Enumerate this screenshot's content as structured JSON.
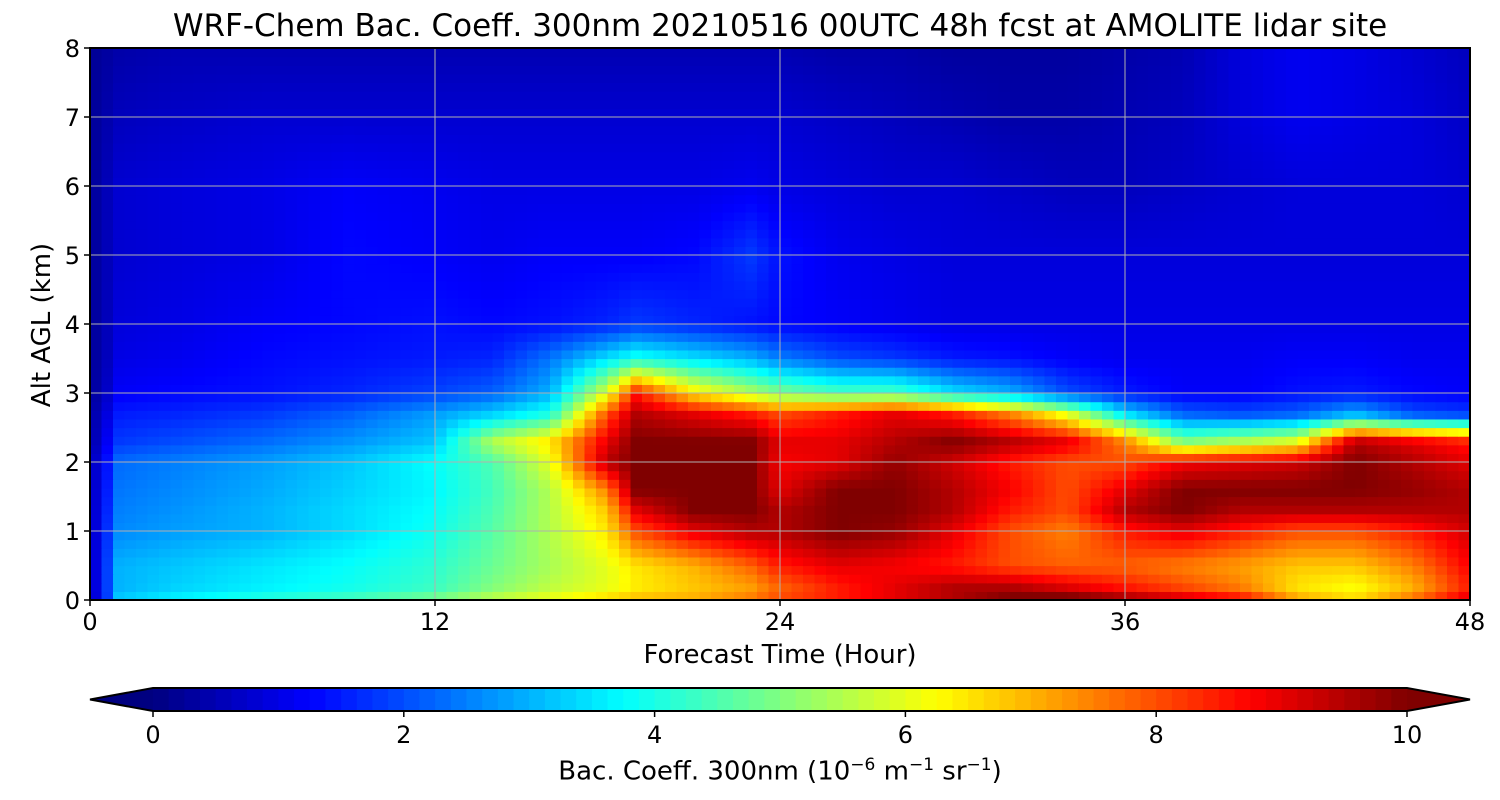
{
  "chart_data": {
    "type": "heatmap",
    "title": "WRF-Chem Bac. Coeff. 300nm  20210516 00UTC 48h fcst at AMOLITE lidar site",
    "xlabel": "Forecast Time (Hour)",
    "ylabel": "Alt AGL (km)",
    "xlim": [
      0,
      48
    ],
    "ylim": [
      0,
      8
    ],
    "x_ticks": [
      "0",
      "12",
      "24",
      "36",
      "48"
    ],
    "y_ticks": [
      "0",
      "1",
      "2",
      "3",
      "4",
      "5",
      "6",
      "7",
      "8"
    ],
    "grid": true,
    "colorbar": {
      "label_prefix": "Bac. Coeff. 300nm  (10",
      "label_exp1": "−6",
      "label_mid": " m",
      "label_exp2": "−1",
      "label_mid2": " sr",
      "label_exp3": "−1",
      "label_suffix": ")",
      "colormap": "jet",
      "range": [
        0,
        10
      ],
      "extend": "both",
      "ticks": [
        "0",
        "2",
        "4",
        "6",
        "8",
        "10"
      ]
    },
    "x_hours": [
      0,
      0.5,
      1,
      3,
      6,
      9,
      12,
      14,
      16,
      18,
      19,
      21,
      23,
      24,
      26,
      28,
      30,
      32,
      34,
      36,
      38,
      40,
      42,
      44,
      46,
      48
    ],
    "y_km": [
      0,
      0.05,
      0.2,
      0.5,
      1.0,
      1.3,
      1.6,
      2.0,
      2.3,
      2.7,
      3.0,
      3.5,
      4.0,
      5.0,
      6.0,
      7.0,
      8.0
    ],
    "z_values": [
      [
        0.5,
        1.0,
        1.5,
        1.6,
        1.8,
        2.0,
        3.0,
        4.5,
        5.5,
        6.5,
        6.8,
        7.0,
        7.5,
        8.0,
        8.5,
        9.0,
        9.2,
        9.5,
        9.5,
        9.5,
        9.5,
        9.5,
        9.0,
        8.5,
        8.8,
        9.5
      ],
      [
        0.5,
        1.5,
        3.2,
        3.6,
        4.0,
        4.3,
        4.8,
        5.5,
        6.0,
        6.5,
        6.8,
        7.0,
        7.5,
        8.0,
        8.5,
        9.0,
        9.5,
        10,
        10,
        9.5,
        9.0,
        8.5,
        7.0,
        6.5,
        7.5,
        9.0
      ],
      [
        0.5,
        1.6,
        3.0,
        3.3,
        3.6,
        3.9,
        4.3,
        5.0,
        5.6,
        6.0,
        6.4,
        6.8,
        7.2,
        7.8,
        8.5,
        9.0,
        9.5,
        9.5,
        9.0,
        8.5,
        8.0,
        7.5,
        6.5,
        6.2,
        7.0,
        8.5
      ],
      [
        0.5,
        1.6,
        3.0,
        3.2,
        3.5,
        3.8,
        4.2,
        4.8,
        5.4,
        6.0,
        6.5,
        7.0,
        7.8,
        8.5,
        9.0,
        8.8,
        8.5,
        8.0,
        7.8,
        7.8,
        7.5,
        7.2,
        6.8,
        6.8,
        7.5,
        8.8
      ],
      [
        0.5,
        1.5,
        2.6,
        2.8,
        3.0,
        3.4,
        3.9,
        4.6,
        5.5,
        6.5,
        8.0,
        9.0,
        9.5,
        9.5,
        10,
        9.8,
        9.0,
        8.0,
        7.5,
        8.5,
        9.0,
        8.5,
        8.0,
        8.0,
        8.5,
        9.2
      ],
      [
        0.5,
        1.4,
        2.5,
        2.7,
        3.0,
        3.4,
        3.8,
        4.5,
        5.5,
        6.8,
        9.0,
        10,
        10,
        9.5,
        10,
        10,
        9.5,
        8.5,
        8.0,
        9.5,
        10,
        9.5,
        9.5,
        9.5,
        9.5,
        9.5
      ],
      [
        0.5,
        1.3,
        2.4,
        2.6,
        2.9,
        3.3,
        3.7,
        4.4,
        5.5,
        7.5,
        10,
        10,
        10,
        9.0,
        10,
        10,
        9.5,
        8.8,
        8.0,
        9.0,
        10,
        10,
        10,
        10,
        9.8,
        9.5
      ],
      [
        0.5,
        1.2,
        2.3,
        2.5,
        2.8,
        3.2,
        3.8,
        4.5,
        6.0,
        9.5,
        10,
        10,
        10,
        8.8,
        9.0,
        9.8,
        9.2,
        8.5,
        8.0,
        8.0,
        8.8,
        9.0,
        9.2,
        10,
        9.5,
        9.0
      ],
      [
        0.3,
        1.0,
        1.8,
        2.0,
        2.3,
        2.7,
        3.2,
        5.5,
        6.5,
        9.0,
        10,
        10,
        10,
        9.0,
        9.0,
        9.5,
        10,
        9.5,
        9.0,
        7.5,
        5.0,
        5.5,
        6.0,
        9.5,
        9.0,
        8.5
      ],
      [
        0.3,
        0.8,
        1.5,
        1.6,
        1.8,
        2.2,
        2.8,
        3.3,
        4.0,
        8.0,
        9.5,
        9.0,
        8.5,
        8.0,
        8.5,
        9.0,
        8.5,
        7.5,
        6.0,
        3.5,
        2.2,
        2.0,
        2.2,
        3.0,
        2.0,
        1.8
      ],
      [
        0.2,
        0.6,
        1.2,
        1.3,
        1.4,
        1.6,
        1.9,
        2.2,
        3.0,
        6.0,
        8.5,
        6.5,
        5.5,
        5.0,
        4.5,
        4.5,
        3.5,
        3.0,
        2.0,
        1.5,
        1.2,
        1.2,
        1.4,
        1.5,
        1.3,
        1.2
      ],
      [
        0.2,
        0.5,
        1.0,
        1.1,
        1.3,
        1.4,
        1.5,
        1.6,
        2.4,
        3.5,
        4.0,
        3.5,
        3.0,
        2.5,
        2.0,
        1.8,
        1.5,
        1.4,
        1.2,
        1.1,
        1.1,
        1.1,
        1.2,
        1.2,
        1.1,
        1.1
      ],
      [
        0.2,
        0.5,
        0.9,
        1.0,
        1.2,
        1.3,
        1.4,
        1.3,
        1.4,
        1.6,
        1.8,
        1.6,
        1.4,
        1.3,
        1.2,
        1.1,
        1.0,
        1.0,
        1.0,
        1.0,
        1.0,
        1.0,
        1.0,
        1.0,
        1.0,
        1.0
      ],
      [
        0.2,
        0.5,
        0.8,
        0.9,
        1.0,
        1.3,
        1.2,
        1.1,
        1.2,
        1.2,
        1.2,
        1.3,
        1.8,
        1.4,
        1.1,
        1.0,
        0.9,
        0.9,
        0.9,
        0.9,
        0.9,
        0.9,
        0.9,
        0.9,
        0.9,
        0.9
      ],
      [
        0.2,
        0.5,
        0.8,
        0.9,
        1.0,
        1.2,
        1.1,
        1.0,
        1.0,
        1.0,
        1.0,
        1.0,
        1.1,
        1.0,
        0.9,
        0.8,
        0.8,
        0.7,
        0.6,
        0.6,
        0.7,
        0.8,
        0.9,
        0.9,
        0.9,
        0.8
      ],
      [
        0.2,
        0.4,
        0.6,
        0.7,
        0.8,
        0.8,
        0.8,
        0.8,
        0.8,
        0.8,
        0.8,
        0.8,
        0.8,
        0.8,
        0.7,
        0.6,
        0.5,
        0.4,
        0.4,
        0.5,
        0.6,
        0.9,
        1.1,
        1.0,
        0.9,
        0.7
      ],
      [
        0.2,
        0.3,
        0.4,
        0.5,
        0.5,
        0.5,
        0.5,
        0.5,
        0.5,
        0.5,
        0.5,
        0.5,
        0.5,
        0.5,
        0.4,
        0.4,
        0.3,
        0.3,
        0.3,
        0.4,
        0.5,
        0.9,
        1.1,
        1.0,
        0.8,
        0.6
      ]
    ]
  }
}
